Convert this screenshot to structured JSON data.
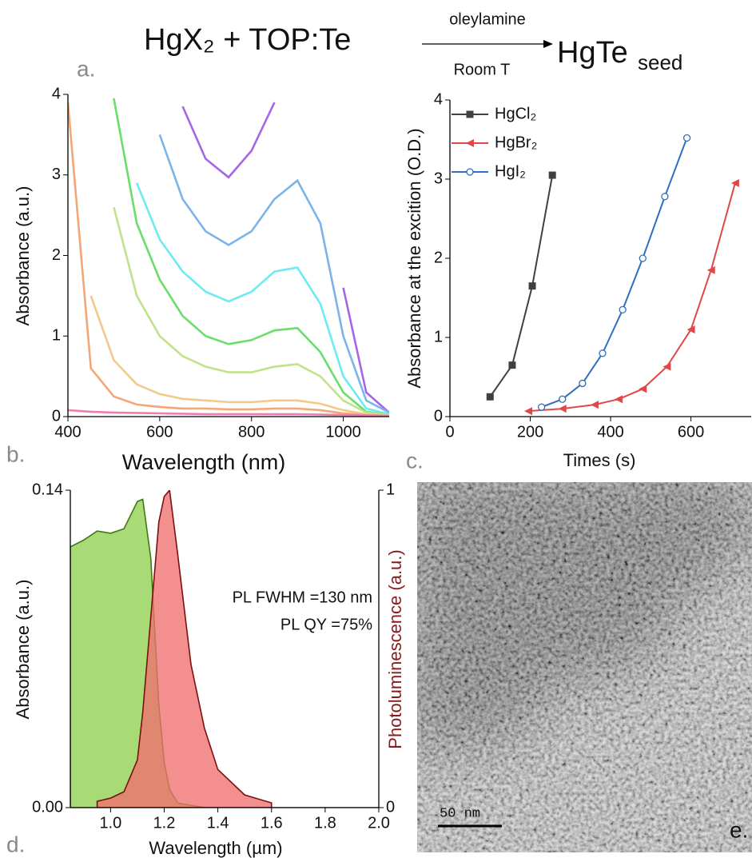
{
  "scheme": {
    "reactants": "HgX₂ + TOP:Te",
    "above_arrow": "oleylamine",
    "below_arrow": "Room T",
    "product": "HgTe",
    "product_subscript": "seed"
  },
  "panel_labels": [
    "a.",
    "b.",
    "c.",
    "d.",
    "e."
  ],
  "micrograph": {
    "scale_bar": "50 nm"
  },
  "chart_data": [
    {
      "type": "line",
      "x_label": "Wavelength (nm)",
      "y_label": "Absorbance (a.u.)",
      "x": [
        400,
        450,
        500,
        550,
        600,
        650,
        700,
        750,
        800,
        850,
        900,
        950,
        1000,
        1050,
        1100
      ],
      "series": [
        {
          "color": "#a566e6",
          "values": [
            null,
            null,
            null,
            null,
            null,
            3.85,
            3.2,
            2.97,
            3.3,
            3.9,
            null,
            null,
            1.6,
            0.3,
            0.05
          ]
        },
        {
          "color": "#7ab4ea",
          "values": [
            null,
            null,
            null,
            null,
            3.5,
            2.7,
            2.3,
            2.13,
            2.3,
            2.7,
            2.93,
            2.4,
            1.0,
            0.2,
            0.05
          ]
        },
        {
          "color": "#6eeaf2",
          "values": [
            null,
            null,
            null,
            2.9,
            2.2,
            1.8,
            1.55,
            1.43,
            1.55,
            1.8,
            1.85,
            1.4,
            0.5,
            0.1,
            0.03
          ]
        },
        {
          "color": "#6ade6a",
          "values": [
            null,
            null,
            3.95,
            2.4,
            1.7,
            1.25,
            1.0,
            0.9,
            0.95,
            1.07,
            1.1,
            0.8,
            0.3,
            0.06,
            0.02
          ]
        },
        {
          "color": "#bfe28a",
          "values": [
            null,
            null,
            2.6,
            1.5,
            1.0,
            0.75,
            0.62,
            0.55,
            0.55,
            0.62,
            0.65,
            0.5,
            0.2,
            0.05,
            0.02
          ]
        },
        {
          "color": "#f2c98a",
          "values": [
            null,
            1.5,
            0.7,
            0.4,
            0.28,
            0.22,
            0.2,
            0.18,
            0.18,
            0.2,
            0.2,
            0.16,
            0.08,
            0.03,
            0.01
          ]
        },
        {
          "color": "#f2a874",
          "values": [
            3.9,
            0.6,
            0.25,
            0.15,
            0.12,
            0.1,
            0.1,
            0.09,
            0.09,
            0.1,
            0.1,
            0.08,
            0.04,
            0.02,
            0.01
          ]
        },
        {
          "color": "#f07cb0",
          "values": [
            0.08,
            0.06,
            0.05,
            0.045,
            0.04,
            0.035,
            0.03,
            0.03,
            0.03,
            0.03,
            0.03,
            0.025,
            0.02,
            0.015,
            0.01
          ]
        }
      ],
      "xlim": [
        400,
        1100
      ],
      "xticks": [
        400,
        600,
        800,
        1000
      ],
      "ylim": [
        0,
        4
      ],
      "yticks": [
        0,
        1,
        2,
        3,
        4
      ]
    },
    {
      "type": "line",
      "x_label": "Times (s)",
      "y_label": "Absorbance at the excition (O.D.)",
      "legend": "upper left",
      "series": [
        {
          "name": "HgCl₂",
          "color": "#404040",
          "marker": "square",
          "x": [
            100,
            155,
            205,
            255
          ],
          "values": [
            0.25,
            0.65,
            1.65,
            3.05
          ]
        },
        {
          "name": "HgBr₂",
          "color": "#e04848",
          "marker": "triangle-left",
          "x": [
            195,
            280,
            360,
            420,
            480,
            540,
            600,
            650,
            710
          ],
          "values": [
            0.07,
            0.1,
            0.15,
            0.22,
            0.35,
            0.63,
            1.1,
            1.85,
            2.95
          ]
        },
        {
          "name": "HgI₂",
          "color": "#2e6fc0",
          "marker": "open-circle",
          "x": [
            228,
            280,
            330,
            380,
            430,
            480,
            535,
            590
          ],
          "values": [
            0.12,
            0.22,
            0.42,
            0.8,
            1.35,
            2.0,
            2.78,
            3.52
          ]
        }
      ],
      "xlim": [
        0,
        750
      ],
      "xticks": [
        0,
        200,
        400,
        600
      ],
      "ylim": [
        0,
        4
      ],
      "yticks": [
        0,
        1,
        2,
        3,
        4
      ]
    },
    {
      "type": "area",
      "x_label": "Wavelength (µm)",
      "y_label": "Absorbance (a.u.)",
      "y2_label": "Photoluminescence (a.u.)",
      "y2_label_color": "#8b1a1a",
      "annotations": [
        "PL FWHM =130 nm",
        "PL QY =75%"
      ],
      "x": [
        0.85,
        0.9,
        0.95,
        1.0,
        1.05,
        1.1,
        1.12,
        1.15,
        1.18,
        1.2,
        1.22,
        1.25,
        1.3,
        1.35,
        1.4,
        1.5,
        1.6,
        1.7,
        1.8,
        1.9,
        2.0
      ],
      "series": [
        {
          "color": "#8fd14f",
          "edge_color": "#3d7a14",
          "values": [
            0.115,
            0.118,
            0.122,
            0.121,
            0.123,
            0.135,
            0.136,
            0.11,
            0.045,
            0.02,
            0.008,
            0.002,
            0.001,
            0,
            0,
            0,
            0,
            0,
            0,
            0,
            0
          ]
        },
        {
          "color": "#f07070",
          "edge_color": "#7a1010",
          "axis": "y2",
          "values": [
            null,
            null,
            0.02,
            0.03,
            0.05,
            0.15,
            0.3,
            0.6,
            0.9,
            0.98,
            1.0,
            0.8,
            0.45,
            0.25,
            0.12,
            0.04,
            0.015,
            null,
            null,
            null,
            null
          ]
        }
      ],
      "xlim": [
        0.85,
        2.0
      ],
      "xticks": [
        {
          "value": 1,
          "label": "1.0"
        },
        1.2,
        1.4,
        1.6,
        1.8,
        {
          "value": 2,
          "label": "2.0"
        }
      ],
      "ylim": [
        0,
        0.14
      ],
      "yticks": [
        {
          "value": 0,
          "label": "0.00"
        },
        0.14
      ],
      "y2lim": [
        0,
        1
      ],
      "y2ticks": [
        0,
        1
      ]
    }
  ]
}
